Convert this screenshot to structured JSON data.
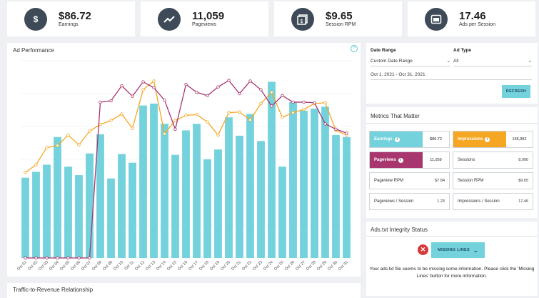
{
  "kpis": [
    {
      "value": "$86.72",
      "label": "Earnings",
      "icon": "dollar-icon"
    },
    {
      "value": "11,059",
      "label": "Pageviews",
      "icon": "trending-icon"
    },
    {
      "value": "$9.65",
      "label": "Session RPM",
      "icon": "rpm-icon"
    },
    {
      "value": "17.46",
      "label": "Ads per Session",
      "icon": "browser-icon"
    }
  ],
  "ad_performance": {
    "title": "Ad Performance",
    "help": "?"
  },
  "traffic_revenue": {
    "title": "Traffic-to-Revenue Relationship"
  },
  "filters": {
    "date_range_label": "Date Range",
    "date_range_value": "Custom Date Range",
    "ad_type_label": "Ad Type",
    "ad_type_value": "All",
    "date_text": "Oct 1, 2021 - Oct 31, 2021",
    "refresh_label": "REFRESH"
  },
  "metrics": {
    "title": "Metrics That Matter",
    "earnings": {
      "label": "Earnings",
      "value": "$86.72"
    },
    "impressions": {
      "label": "Impressions",
      "value": "156,992"
    },
    "pageviews": {
      "label": "Pageviews",
      "value": "11,059"
    },
    "sessions": {
      "label": "Sessions",
      "value": "8,990"
    },
    "pageview_rpm": {
      "label": "Pageview RPM",
      "value": "$7.84"
    },
    "session_rpm": {
      "label": "Session RPM",
      "value": "$9.65"
    },
    "pageviews_session": {
      "label": "Pageviews / Session",
      "value": "1.23"
    },
    "impressions_session": {
      "label": "Impressions / Session",
      "value": "17.46"
    }
  },
  "ads_txt": {
    "title": "Ads.txt Integrity Status",
    "button_label": "MISSING LINES",
    "message": "Your ads.txt file seems to be missing some information. Please click the 'Missing Lines' button for more information."
  },
  "colors": {
    "bar": "#73d2dc",
    "pageviews": "#a8366f",
    "impressions": "#f5a623",
    "dark": "#3e4a57"
  },
  "chart_data": {
    "type": "bar",
    "categories": [
      "Oct 01",
      "Oct 02",
      "Oct 03",
      "Oct 04",
      "Oct 05",
      "Oct 06",
      "Oct 07",
      "Oct 08",
      "Oct 09",
      "Oct 10",
      "Oct 11",
      "Oct 12",
      "Oct 13",
      "Oct 14",
      "Oct 15",
      "Oct 16",
      "Oct 17",
      "Oct 18",
      "Oct 19",
      "Oct 20",
      "Oct 21",
      "Oct 22",
      "Oct 23",
      "Oct 24",
      "Oct 25",
      "Oct 26",
      "Oct 27",
      "Oct 28",
      "Oct 29",
      "Oct 30",
      "Oct 31"
    ],
    "ylim": [
      0,
      100
    ],
    "series": [
      {
        "values": [
          40.7,
          43.7,
          47.3,
          61.3,
          46.3,
          42.0,
          53.0,
          62.7,
          40.3,
          52.7,
          48.3,
          77.3,
          78.3,
          68.0,
          52.3,
          64.7,
          68.0,
          50.0,
          55.0,
          71.3,
          62.0,
          73.0,
          59.3,
          89.3,
          46.3,
          79.0,
          74.7,
          75.7,
          76.7,
          62.3,
          61.3
        ]
      },
      {
        "values": [
          0,
          0,
          0,
          0,
          0,
          0,
          0,
          79.0,
          79.7,
          87.3,
          82.0,
          89.3,
          86.3,
          80.0,
          65.3,
          88.0,
          84.0,
          82.3,
          86.7,
          90.0,
          83.3,
          89.7,
          85.3,
          77.0,
          82.3,
          79.0,
          79.0,
          78.7,
          68.0,
          65.3,
          63.3
        ]
      },
      {
        "values": [
          43.3,
          47.3,
          56.0,
          57.0,
          62.3,
          57.3,
          64.3,
          67.7,
          69.7,
          73.0,
          65.7,
          85.3,
          89.7,
          63.0,
          69.7,
          72.3,
          72.7,
          69.0,
          62.3,
          73.7,
          74.0,
          70.0,
          78.3,
          84.0,
          71.3,
          73.7,
          75.3,
          78.3,
          78.7,
          64.7,
          62.3
        ]
      }
    ]
  }
}
